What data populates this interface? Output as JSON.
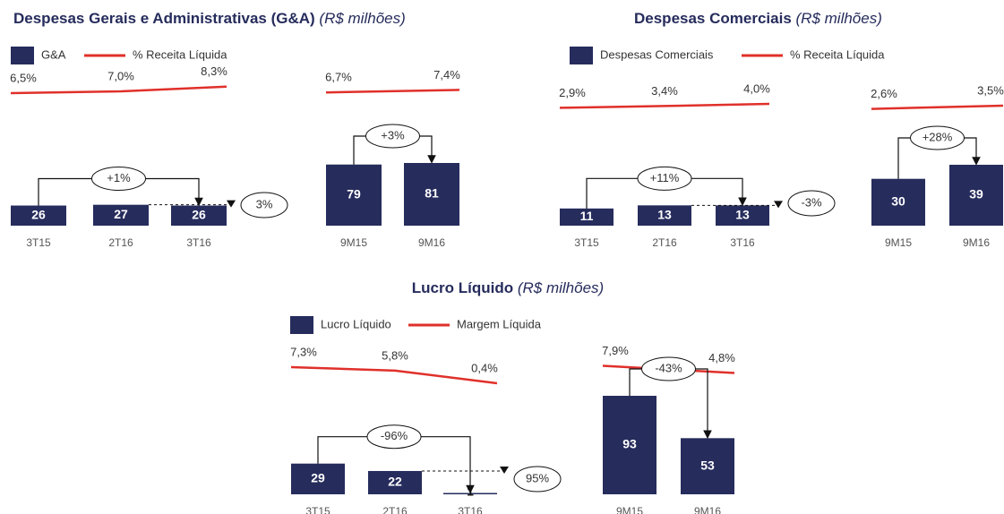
{
  "chart_data": [
    {
      "type": "bar",
      "title": "Despesas Gerais e Administrativas (G&A)",
      "subtitle": "(R$ milhões)",
      "categories": [
        "3T15",
        "2T16",
        "3T16",
        "9M15",
        "9M16"
      ],
      "series": [
        {
          "name": "G&A",
          "color": "#262c5c",
          "values": [
            26,
            27,
            26,
            79,
            81
          ]
        },
        {
          "name": "% Receita Líquida",
          "color": "#e0302a",
          "type": "line",
          "values": [
            6.5,
            7.0,
            8.3,
            6.7,
            7.4
          ],
          "value_labels": [
            "6,5%",
            "7,0%",
            "8,3%",
            "6,7%",
            "7,4%"
          ]
        }
      ],
      "annotations": [
        "+1%",
        "3%",
        "+3%"
      ]
    },
    {
      "type": "bar",
      "title": "Despesas Comerciais",
      "subtitle": "(R$ milhões)",
      "categories": [
        "3T15",
        "2T16",
        "3T16",
        "9M15",
        "9M16"
      ],
      "series": [
        {
          "name": "Despesas Comerciais",
          "color": "#262c5c",
          "values": [
            11,
            13,
            13,
            30,
            39
          ]
        },
        {
          "name": "% Receita Líquida",
          "color": "#e0302a",
          "type": "line",
          "values": [
            2.9,
            3.4,
            4.0,
            2.6,
            3.5
          ],
          "value_labels": [
            "2,9%",
            "3,4%",
            "4,0%",
            "2,6%",
            "3,5%"
          ]
        }
      ],
      "annotations": [
        "+11%",
        "-3%",
        "+28%"
      ]
    },
    {
      "type": "bar",
      "title": "Lucro Líquido",
      "subtitle": "(R$ milhões)",
      "categories": [
        "3T15",
        "2T16",
        "3T16",
        "9M15",
        "9M16"
      ],
      "series": [
        {
          "name": "Lucro Líquido",
          "color": "#262c5c",
          "values": [
            29,
            22,
            1,
            93,
            53
          ]
        },
        {
          "name": "Margem Líquida",
          "color": "#e0302a",
          "type": "line",
          "values": [
            7.3,
            5.8,
            0.4,
            7.9,
            4.8
          ],
          "value_labels": [
            "7,3%",
            "5,8%",
            "0,4%",
            "7,9%",
            "4,8%"
          ]
        }
      ],
      "annotations": [
        "-96%",
        "95%",
        "-43%"
      ]
    }
  ]
}
